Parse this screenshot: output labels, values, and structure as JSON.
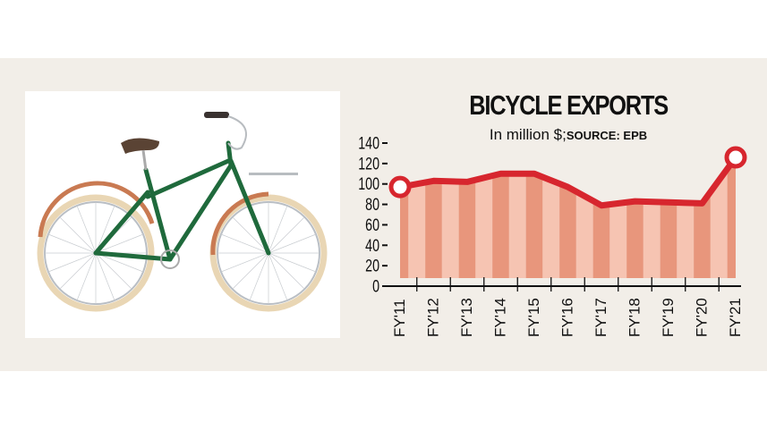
{
  "chart_data": {
    "type": "area",
    "title": "BICYCLE EXPORTS",
    "subtitle": "In million $;",
    "source": "SOURCE: EPB",
    "categories": [
      "FY'11",
      "FY'12",
      "FY'13",
      "FY'14",
      "FY'15",
      "FY'16",
      "FY'17",
      "FY'18",
      "FY'19",
      "FY'20",
      "FY'21"
    ],
    "values": [
      97,
      103,
      102,
      110,
      110,
      97,
      79,
      83,
      82,
      81,
      126
    ],
    "yticks": [
      0,
      20,
      40,
      60,
      80,
      100,
      120,
      140
    ],
    "ylim": [
      0,
      140
    ],
    "grid": false,
    "highlighted_points": [
      "FY'11",
      "FY'21"
    ],
    "colors": {
      "line": "#d7262e",
      "bar_dark": "#e8967c",
      "bar_light": "#f6c4b2",
      "background": "#f2eee8"
    }
  }
}
